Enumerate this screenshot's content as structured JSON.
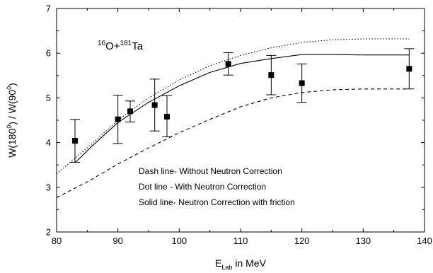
{
  "chart_data": {
    "type": "scatter",
    "annotation": {
      "mass_a": "16",
      "elem_a": "O+",
      "mass_b": "181",
      "elem_b": "Ta"
    },
    "xlabel": {
      "main": "E",
      "sub": "Lab",
      "rest": " in MeV"
    },
    "ylabel": {
      "p1": "W(180",
      "s1": "0",
      "p2": ") / W(90",
      "s2": "0",
      "p3": ")"
    },
    "xlim": [
      80,
      140
    ],
    "ylim": [
      2,
      7
    ],
    "xticks": [
      80,
      90,
      100,
      110,
      120,
      130,
      140
    ],
    "yticks": [
      2,
      3,
      4,
      5,
      6,
      7
    ],
    "grid": false,
    "legend": {
      "placement": "bottom-right",
      "entries": [
        "Dash line- Without Neutron Correction",
        "Dot line - With Neutron Correction",
        "Solid line- Neutron Correction with friction"
      ]
    },
    "points": [
      {
        "x": 83,
        "y": 4.04,
        "err_low": 3.56,
        "err_high": 4.52
      },
      {
        "x": 90,
        "y": 4.52,
        "err_low": 3.98,
        "err_high": 5.06
      },
      {
        "x": 92,
        "y": 4.7,
        "err_low": 4.46,
        "err_high": 4.93
      },
      {
        "x": 96,
        "y": 4.84,
        "err_low": 4.26,
        "err_high": 5.42
      },
      {
        "x": 98,
        "y": 4.58,
        "err_low": 4.13,
        "err_high": 5.05
      },
      {
        "x": 108,
        "y": 5.76,
        "err_low": 5.51,
        "err_high": 6.01
      },
      {
        "x": 115,
        "y": 5.51,
        "err_low": 5.07,
        "err_high": 5.95
      },
      {
        "x": 120,
        "y": 5.33,
        "err_low": 4.9,
        "err_high": 5.76
      },
      {
        "x": 137.5,
        "y": 5.65,
        "err_low": 5.2,
        "err_high": 6.1
      }
    ],
    "series": [
      {
        "style": "dashed",
        "x": [
          80,
          85,
          90,
          95,
          100,
          105,
          110,
          115,
          120,
          125,
          130,
          135,
          137.5
        ],
        "y": [
          2.77,
          3.12,
          3.52,
          3.88,
          4.22,
          4.52,
          4.8,
          5.0,
          5.12,
          5.18,
          5.2,
          5.2,
          5.2
        ]
      },
      {
        "style": "dotted",
        "x": [
          80,
          85,
          90,
          95,
          100,
          105,
          110,
          115,
          120,
          125,
          130,
          135,
          137.5
        ],
        "y": [
          3.3,
          3.88,
          4.5,
          5.0,
          5.4,
          5.72,
          5.95,
          6.12,
          6.24,
          6.3,
          6.32,
          6.32,
          6.32
        ]
      },
      {
        "style": "solid",
        "x": [
          83,
          86,
          90,
          95,
          100,
          105,
          110,
          115,
          120,
          125,
          130,
          137.5
        ],
        "y": [
          3.55,
          3.95,
          4.45,
          4.9,
          5.27,
          5.57,
          5.77,
          5.88,
          5.97,
          5.97,
          5.96,
          5.96
        ]
      }
    ]
  }
}
